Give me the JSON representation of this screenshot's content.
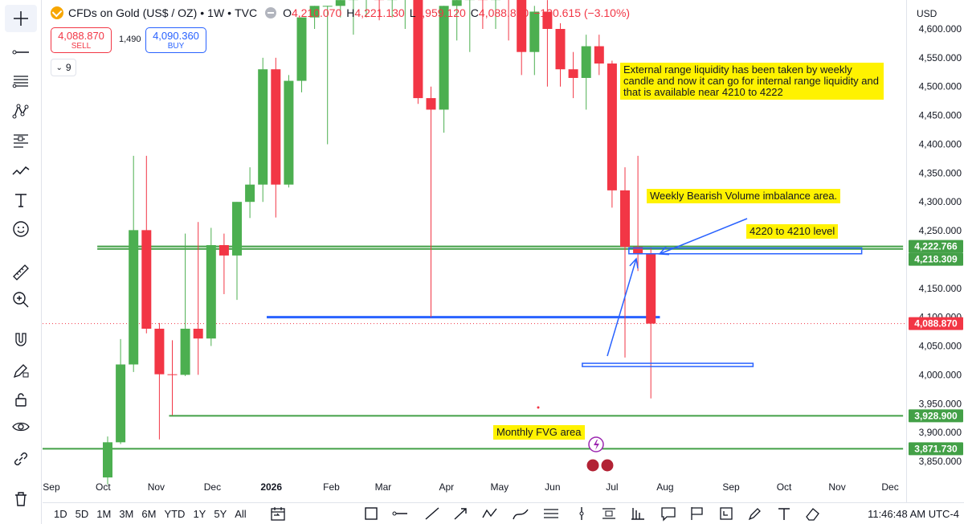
{
  "header": {
    "symbol": "CFDs on Gold (US$ / OZ)",
    "interval": "1W",
    "source": "TVC",
    "open_label": "O",
    "open": "4,210.070",
    "high_label": "H",
    "high": "4,221.130",
    "low_label": "L",
    "low": "3,959.120",
    "close_label": "C",
    "close": "4,088.870",
    "change": "−130.615 (−3.10%)"
  },
  "trade": {
    "sell_price": "4,088.870",
    "sell_label": "SELL",
    "spread": "1,490",
    "buy_price": "4,090.360",
    "buy_label": "BUY"
  },
  "indicators_toggle": "9",
  "price_axis": {
    "currency": "USD",
    "badges": [
      {
        "text": "4,222.766",
        "value": 4222.766,
        "color": "#43a047"
      },
      {
        "text": "4,218.309",
        "value": 4218.309,
        "color": "#43a047"
      },
      {
        "text": "4,088.870",
        "value": 4088.87,
        "color": "#f23645"
      },
      {
        "text": "3,928.900",
        "value": 3928.9,
        "color": "#43a047"
      },
      {
        "text": "3,871.730",
        "value": 3871.73,
        "color": "#43a047"
      }
    ]
  },
  "annotations": {
    "range_liquidity": "External range liquidity has been taken by weekly candle and now it can go for internal range liquidity and that is available near 4210 to 4222",
    "imbalance": "Weekly Bearish Volume imbalance area.",
    "level": "4220 to 4210 level",
    "fvg": "Monthly FVG area"
  },
  "bottom_bar": {
    "periods": [
      "1D",
      "5D",
      "1M",
      "3M",
      "6M",
      "YTD",
      "1Y",
      "5Y",
      "All"
    ],
    "clock": "11:46:48 AM UTC-4"
  },
  "left_tools": [
    "crosshair-icon",
    "trend-line-icon",
    "fib-icon",
    "pattern-icon",
    "forecast-icon",
    "brush-icon",
    "text-icon",
    "emoji-icon",
    "ruler-icon",
    "zoom-in-icon",
    "magnet-icon",
    "lock-draw-icon",
    "lock-icon",
    "eye-icon",
    "link-icon",
    "trash-icon"
  ],
  "chart_data": {
    "type": "candlestick",
    "title": "CFDs on Gold (US$ / OZ) · 1W · TVC",
    "ylim": [
      3810,
      4620
    ],
    "y_ticks": [
      3850,
      3900,
      3950,
      4000,
      4050,
      4100,
      4150,
      4200,
      4250,
      4300,
      4350,
      4400,
      4450,
      4500,
      4550,
      4600
    ],
    "y_tick_labels": [
      "3,850.000",
      "3,900.000",
      "3,950.000",
      "4,000.000",
      "4,050.000",
      "4,100.000",
      "4,150.000",
      "4,200.000",
      "4,250.000",
      "4,300.000",
      "4,350.000",
      "4,400.000",
      "4,450.000",
      "4,500.000",
      "4,550.000",
      "4,600.000"
    ],
    "x_ticks": [
      {
        "label": "Sep",
        "i": -4.35
      },
      {
        "label": "Oct",
        "i": -0.35
      },
      {
        "label": "Nov",
        "i": 3.75
      },
      {
        "label": "Dec",
        "i": 8.1
      },
      {
        "label": "2026",
        "i": 12.65
      },
      {
        "label": "Feb",
        "i": 17.3
      },
      {
        "label": "Mar",
        "i": 21.3
      },
      {
        "label": "Apr",
        "i": 26.2
      },
      {
        "label": "May",
        "i": 30.3
      },
      {
        "label": "Jun",
        "i": 34.4
      },
      {
        "label": "Jul",
        "i": 39.0
      },
      {
        "label": "Aug",
        "i": 43.1
      },
      {
        "label": "Sep",
        "i": 48.2
      },
      {
        "label": "Oct",
        "i": 52.3
      },
      {
        "label": "Nov",
        "i": 56.4
      },
      {
        "label": "Dec",
        "i": 60.5
      }
    ],
    "candles": [
      {
        "o": 3822,
        "h": 3893,
        "l": 3810,
        "c": 3883
      },
      {
        "o": 3883,
        "h": 4062,
        "l": 3880,
        "c": 4018
      },
      {
        "o": 4018,
        "h": 4380,
        "l": 4005,
        "c": 4251
      },
      {
        "o": 4251,
        "h": 4380,
        "l": 4072,
        "c": 4080
      },
      {
        "o": 4080,
        "h": 4090,
        "l": 3888,
        "c": 4001
      },
      {
        "o": 4001,
        "h": 4060,
        "l": 3930,
        "c": 4000
      },
      {
        "o": 4000,
        "h": 4245,
        "l": 3998,
        "c": 4080
      },
      {
        "o": 4080,
        "h": 4265,
        "l": 4000,
        "c": 4063
      },
      {
        "o": 4063,
        "h": 4255,
        "l": 4050,
        "c": 4225
      },
      {
        "o": 4225,
        "h": 4245,
        "l": 4140,
        "c": 4207
      },
      {
        "o": 4207,
        "h": 4300,
        "l": 4130,
        "c": 4300
      },
      {
        "o": 4300,
        "h": 4360,
        "l": 4272,
        "c": 4330
      },
      {
        "o": 4330,
        "h": 4550,
        "l": 4300,
        "c": 4530
      },
      {
        "o": 4530,
        "h": 4550,
        "l": 4273,
        "c": 4330
      },
      {
        "o": 4330,
        "h": 4520,
        "l": 4325,
        "c": 4510
      },
      {
        "o": 4510,
        "h": 4620,
        "l": 4490,
        "c": 4620
      },
      {
        "o": 4620,
        "h": 4640,
        "l": 4600,
        "c": 4640
      },
      {
        "o": 4640,
        "h": 4640,
        "l": 4400,
        "c": 4640
      },
      {
        "o": 4640,
        "h": 4660,
        "l": 4620,
        "c": 4650
      },
      {
        "o": 4650,
        "h": 4680,
        "l": 4590,
        "c": 4660
      },
      {
        "o": 4660,
        "h": 4680,
        "l": 4620,
        "c": 4670
      },
      {
        "o": 4670,
        "h": 4680,
        "l": 4615,
        "c": 4650
      },
      {
        "o": 4650,
        "h": 4690,
        "l": 4620,
        "c": 4680
      },
      {
        "o": 4680,
        "h": 4690,
        "l": 4600,
        "c": 4680
      },
      {
        "o": 4680,
        "h": 4700,
        "l": 4470,
        "c": 4480
      },
      {
        "o": 4480,
        "h": 4500,
        "l": 4100,
        "c": 4460
      },
      {
        "o": 4460,
        "h": 4640,
        "l": 4420,
        "c": 4640
      },
      {
        "o": 4640,
        "h": 4660,
        "l": 4580,
        "c": 4650
      },
      {
        "o": 4650,
        "h": 4670,
        "l": 4560,
        "c": 4660
      },
      {
        "o": 4660,
        "h": 4670,
        "l": 4600,
        "c": 4650
      },
      {
        "o": 4650,
        "h": 4680,
        "l": 4600,
        "c": 4670
      },
      {
        "o": 4670,
        "h": 4690,
        "l": 4580,
        "c": 4660
      },
      {
        "o": 4660,
        "h": 4680,
        "l": 4520,
        "c": 4560
      },
      {
        "o": 4560,
        "h": 4640,
        "l": 4520,
        "c": 4630
      },
      {
        "o": 4630,
        "h": 4650,
        "l": 4500,
        "c": 4600
      },
      {
        "o": 4600,
        "h": 4610,
        "l": 4500,
        "c": 4530
      },
      {
        "o": 4530,
        "h": 4560,
        "l": 4480,
        "c": 4515
      },
      {
        "o": 4515,
        "h": 4590,
        "l": 4460,
        "c": 4570
      },
      {
        "o": 4570,
        "h": 4590,
        "l": 4520,
        "c": 4540
      },
      {
        "o": 4540,
        "h": 4545,
        "l": 4290,
        "c": 4320
      },
      {
        "o": 4320,
        "h": 4360,
        "l": 4030,
        "c": 4222
      },
      {
        "o": 4222,
        "h": 4380,
        "l": 4180,
        "c": 4210
      },
      {
        "o": 4210.07,
        "h": 4221.13,
        "l": 3959.12,
        "c": 4088.87
      }
    ],
    "horizontal_levels": [
      {
        "value": 4222.766,
        "i_start": -0.8,
        "i_end": 61.5,
        "color": "#43a047"
      },
      {
        "value": 4218.309,
        "i_start": -0.8,
        "i_end": 61.5,
        "color": "#43a047"
      },
      {
        "value": 3928.9,
        "i_start": 4.75,
        "i_end": 61.5,
        "color": "#43a047"
      },
      {
        "value": 3871.73,
        "i_start": -5.2,
        "i_end": 61.5,
        "color": "#43a047"
      },
      {
        "value": 4100,
        "i_start": 12.3,
        "i_end": 42.7,
        "color": "#2962ff"
      }
    ],
    "zones": [
      {
        "top": 4220,
        "bottom": 4210,
        "i_start": 40.3,
        "i_end": 58.3,
        "color": "#2962ff"
      },
      {
        "top": 4020,
        "bottom": 4015,
        "i_start": 36.7,
        "i_end": 49.9,
        "color": "#2962ff"
      }
    ]
  }
}
